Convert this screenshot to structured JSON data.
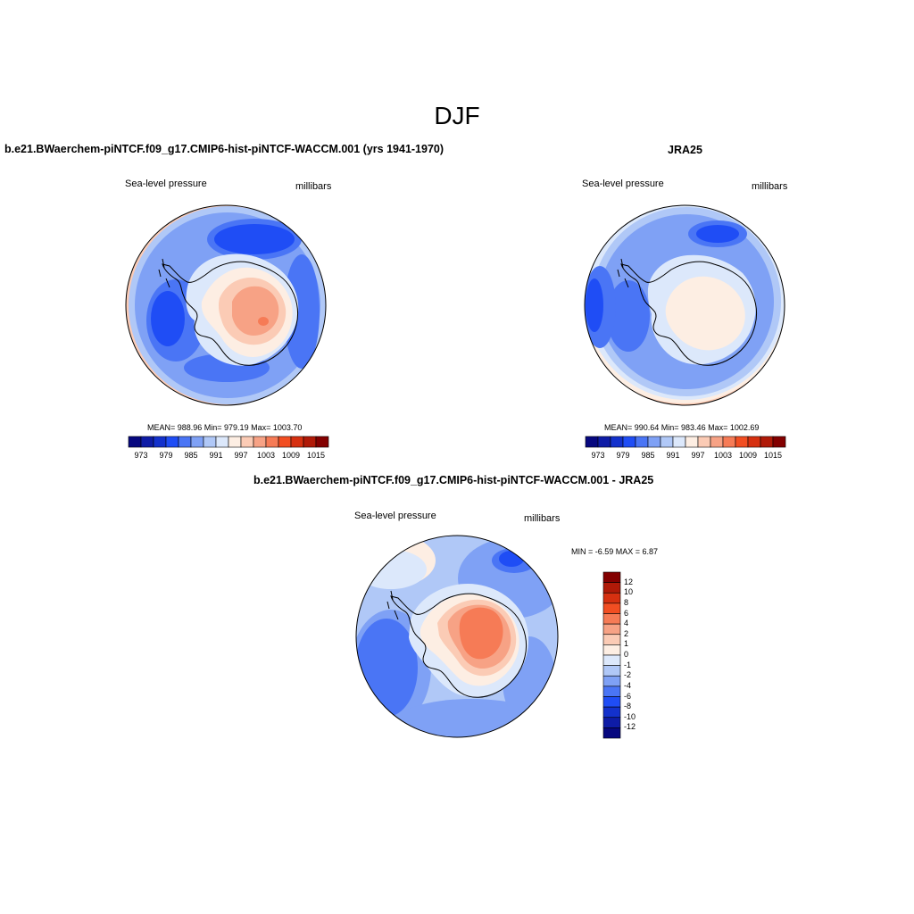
{
  "figure": {
    "title": "DJF",
    "panels": {
      "model": {
        "title": "b.e21.BWaerchem-piNTCF.f09_g17.CMIP6-hist-piNTCF-WACCM.001 (yrs 1941-1970)",
        "left_label": "Sea-level pressure",
        "right_label": "millibars",
        "stats": "MEAN= 988.96  Min= 979.19  Max= 1003.70"
      },
      "obs": {
        "title": "JRA25",
        "left_label": "Sea-level pressure",
        "right_label": "millibars",
        "stats": "MEAN= 990.64  Min= 983.46  Max= 1002.69"
      },
      "diff": {
        "title": "b.e21.BWaerchem-piNTCF.f09_g17.CMIP6-hist-piNTCF-WACCM.001 - JRA25",
        "left_label": "Sea-level pressure",
        "right_label": "millibars",
        "stats": "MIN =  -6.59 MAX =   6.87"
      }
    }
  },
  "chart_data": [
    {
      "type": "heatmap",
      "projection": "south-polar-stereographic",
      "title": "b.e21.BWaerchem-piNTCF.f09_g17.CMIP6-hist-piNTCF-WACCM.001 (yrs 1941-1970)",
      "variable": "Sea-level pressure",
      "units": "millibars",
      "mean": 988.96,
      "min": 979.19,
      "max": 1003.7,
      "colorbar_levels": [
        973,
        979,
        985,
        991,
        997,
        1003,
        1009,
        1015
      ],
      "colorbar_colors": [
        "#07087f",
        "#0e1ca6",
        "#1331cc",
        "#1f4df5",
        "#4a75f5",
        "#7fa1f5",
        "#b0c8f7",
        "#dce8fb",
        "#fdeee3",
        "#fbcbb5",
        "#f7a285",
        "#f67b56",
        "#f24e22",
        "#d63010",
        "#b01a08",
        "#830000"
      ]
    },
    {
      "type": "heatmap",
      "projection": "south-polar-stereographic",
      "title": "JRA25",
      "variable": "Sea-level pressure",
      "units": "millibars",
      "mean": 990.64,
      "min": 983.46,
      "max": 1002.69,
      "colorbar_levels": [
        973,
        979,
        985,
        991,
        997,
        1003,
        1009,
        1015
      ],
      "colorbar_colors": [
        "#07087f",
        "#0e1ca6",
        "#1331cc",
        "#1f4df5",
        "#4a75f5",
        "#7fa1f5",
        "#b0c8f7",
        "#dce8fb",
        "#fdeee3",
        "#fbcbb5",
        "#f7a285",
        "#f67b56",
        "#f24e22",
        "#d63010",
        "#b01a08",
        "#830000"
      ]
    },
    {
      "type": "heatmap",
      "projection": "south-polar-stereographic",
      "title": "b.e21.BWaerchem-piNTCF.f09_g17.CMIP6-hist-piNTCF-WACCM.001 - JRA25",
      "variable": "Sea-level pressure",
      "units": "millibars",
      "min": -6.59,
      "max": 6.87,
      "colorbar_levels": [
        "12",
        "10",
        "8",
        "6",
        "4",
        "2",
        "1",
        "0",
        "-1",
        "-2",
        "-4",
        "-6",
        "-8",
        "-10",
        "-12"
      ],
      "colorbar_colors": [
        "#830000",
        "#b01a08",
        "#d63010",
        "#f24e22",
        "#f67b56",
        "#f7a285",
        "#fbcbb5",
        "#fdeee3",
        "#dce8fb",
        "#b0c8f7",
        "#7fa1f5",
        "#4a75f5",
        "#1f4df5",
        "#1331cc",
        "#0e1ca6",
        "#07087f"
      ]
    }
  ]
}
